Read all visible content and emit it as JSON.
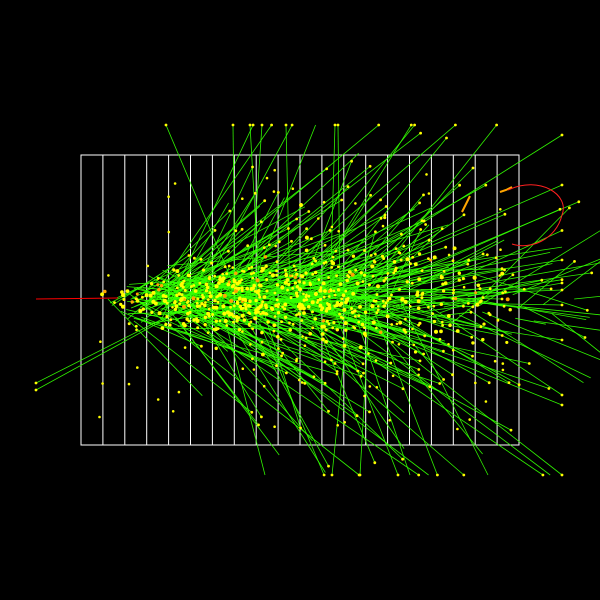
{
  "scene": {
    "description_free": true,
    "background_color": "#000000",
    "detector_color": "#ffffff",
    "track_color": "#33ff00",
    "hit_color": "#ffff00",
    "hit_alt_color": "#ffa500",
    "primary_beam_color": "#ff0000",
    "curl_color": "#ff2020",
    "detector_planes": 20
  }
}
